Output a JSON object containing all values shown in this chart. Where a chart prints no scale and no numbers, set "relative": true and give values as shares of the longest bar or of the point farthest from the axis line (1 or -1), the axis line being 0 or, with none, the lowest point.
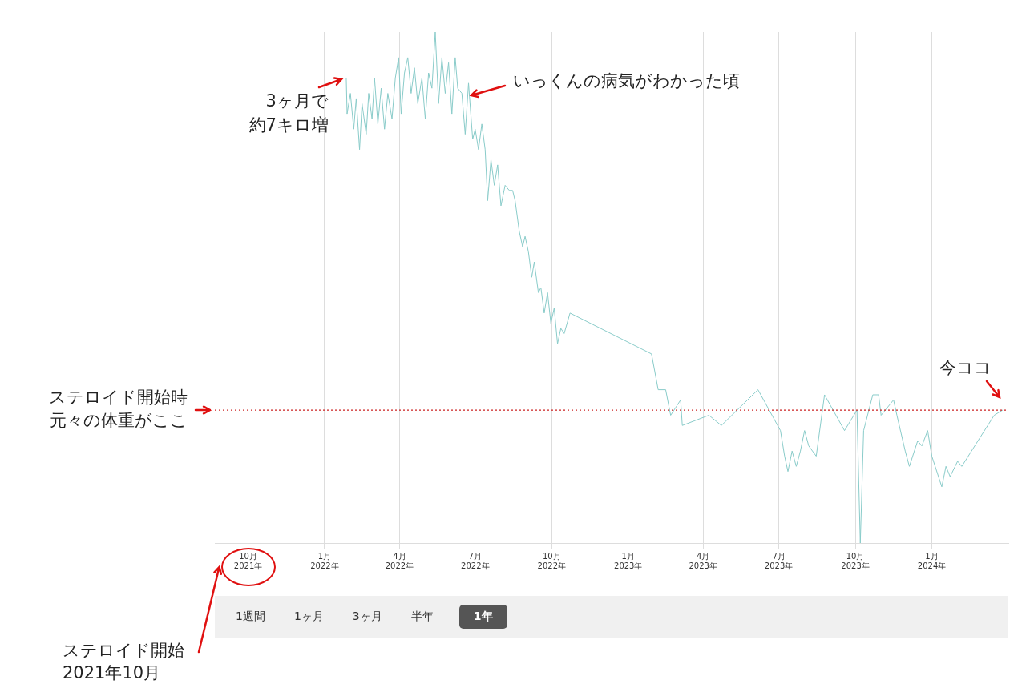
{
  "chart_data": {
    "type": "line",
    "relative": true,
    "grid": "x",
    "legend": false,
    "marker": "none",
    "line_style": "solid",
    "xlim": [
      "2021-08-22",
      "2024-04-02"
    ],
    "xticks": [
      {
        "value": "2021-10-01",
        "label": "10月\n2021年"
      },
      {
        "value": "2022-01-01",
        "label": "1月\n2022年"
      },
      {
        "value": "2022-04-01",
        "label": "4月\n2022年"
      },
      {
        "value": "2022-07-01",
        "label": "7月\n2022年"
      },
      {
        "value": "2022-10-01",
        "label": "10月\n2022年"
      },
      {
        "value": "2023-01-01",
        "label": "1月\n2023年"
      },
      {
        "value": "2023-04-01",
        "label": "4月\n2023年"
      },
      {
        "value": "2023-07-01",
        "label": "7月\n2023年"
      },
      {
        "value": "2023-10-01",
        "label": "10月\n2023年"
      },
      {
        "value": "2024-01-01",
        "label": "1月\n2024年"
      }
    ],
    "ref_lines": [
      {
        "axis": "y",
        "value": 0.26,
        "label": "ステロイド開始時元々の体重がここ",
        "color": "#cc2222",
        "line_style": "dotted"
      }
    ],
    "annotations": [
      {
        "text": "3ヶ月で",
        "x": "2022-01-27",
        "y": 0.91
      },
      {
        "text": "約7キロ増",
        "x": "2022-01-27",
        "y": 0.91
      },
      {
        "text": "いっくんの病気がわかった頃",
        "x": "2022-06-19",
        "y": 0.88
      },
      {
        "text": "今ココ",
        "x": "2024-03-26",
        "y": 0.26
      },
      "ステロイド開始",
      "2021年10月",
      "1週間",
      "1ヶ月",
      "3ヶ月",
      "半年",
      "1年"
    ],
    "series": [
      {
        "color": "#8accca",
        "x": [
          "2022-01-27",
          "2022-01-28",
          "2022-02-01",
          "2022-02-05",
          "2022-02-08",
          "2022-02-12",
          "2022-02-15",
          "2022-02-20",
          "2022-02-23",
          "2022-02-27",
          "2022-03-02",
          "2022-03-06",
          "2022-03-10",
          "2022-03-14",
          "2022-03-18",
          "2022-03-23",
          "2022-03-27",
          "2022-03-31",
          "2022-04-03",
          "2022-04-07",
          "2022-04-11",
          "2022-04-15",
          "2022-04-19",
          "2022-04-23",
          "2022-04-28",
          "2022-05-02",
          "2022-05-06",
          "2022-05-10",
          "2022-05-14",
          "2022-05-18",
          "2022-05-22",
          "2022-05-26",
          "2022-05-30",
          "2022-06-03",
          "2022-06-07",
          "2022-06-10",
          "2022-06-15",
          "2022-06-19",
          "2022-06-23",
          "2022-06-28",
          "2022-07-01",
          "2022-07-05",
          "2022-07-09",
          "2022-07-13",
          "2022-07-16",
          "2022-07-20",
          "2022-07-24",
          "2022-07-28",
          "2022-08-01",
          "2022-08-06",
          "2022-08-11",
          "2022-08-15",
          "2022-08-18",
          "2022-08-23",
          "2022-08-27",
          "2022-08-30",
          "2022-09-03",
          "2022-09-07",
          "2022-09-10",
          "2022-09-15",
          "2022-09-18",
          "2022-09-22",
          "2022-09-26",
          "2022-09-30",
          "2022-10-04",
          "2022-10-08",
          "2022-10-12",
          "2022-10-16",
          "2022-10-23",
          "2023-01-29",
          "2023-02-06",
          "2023-02-15",
          "2023-02-21",
          "2023-03-05",
          "2023-03-07",
          "2023-04-08",
          "2023-04-23",
          "2023-06-06",
          "2023-07-03",
          "2023-07-08",
          "2023-07-12",
          "2023-07-17",
          "2023-07-22",
          "2023-07-27",
          "2023-08-01",
          "2023-08-06",
          "2023-08-15",
          "2023-08-25",
          "2023-09-18",
          "2023-10-03",
          "2023-10-07",
          "2023-10-11",
          "2023-10-22",
          "2023-10-29",
          "2023-11-01",
          "2023-11-16",
          "2023-11-20",
          "2023-11-30",
          "2023-12-05",
          "2023-12-15",
          "2023-12-20",
          "2023-12-27",
          "2024-01-01",
          "2024-01-13",
          "2024-01-18",
          "2024-01-23",
          "2024-02-01",
          "2024-02-06",
          "2024-03-16",
          "2024-03-26"
        ],
        "values": [
          0.91,
          0.84,
          0.88,
          0.81,
          0.87,
          0.77,
          0.86,
          0.8,
          0.88,
          0.83,
          0.91,
          0.82,
          0.89,
          0.81,
          0.88,
          0.83,
          0.91,
          0.95,
          0.84,
          0.92,
          0.95,
          0.88,
          0.93,
          0.86,
          0.91,
          0.83,
          0.92,
          0.89,
          1,
          0.86,
          0.95,
          0.88,
          0.94,
          0.84,
          0.95,
          0.89,
          0.88,
          0.8,
          0.9,
          0.79,
          0.81,
          0.77,
          0.82,
          0.77,
          0.67,
          0.75,
          0.7,
          0.74,
          0.66,
          0.7,
          0.69,
          0.69,
          0.67,
          0.61,
          0.58,
          0.6,
          0.57,
          0.52,
          0.55,
          0.49,
          0.5,
          0.45,
          0.49,
          0.43,
          0.46,
          0.39,
          0.42,
          0.41,
          0.45,
          0.37,
          0.3,
          0.3,
          0.25,
          0.28,
          0.23,
          0.25,
          0.23,
          0.3,
          0.22,
          0.17,
          0.14,
          0.18,
          0.15,
          0.18,
          0.22,
          0.19,
          0.17,
          0.29,
          0.22,
          0.26,
          0,
          0.22,
          0.29,
          0.29,
          0.25,
          0.28,
          0.25,
          0.18,
          0.15,
          0.2,
          0.19,
          0.22,
          0.17,
          0.11,
          0.15,
          0.13,
          0.16,
          0.15,
          0.25,
          0.26
        ]
      }
    ]
  }
}
